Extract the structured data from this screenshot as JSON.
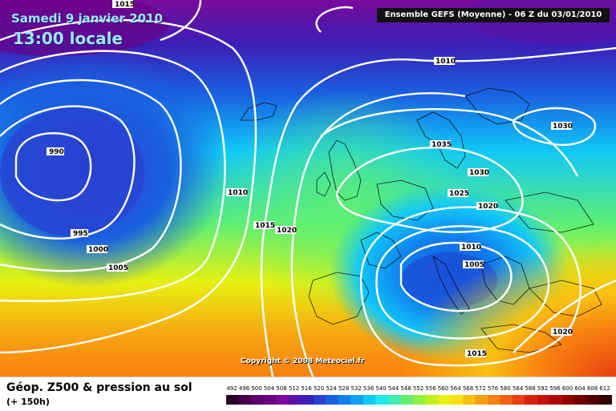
{
  "header": {
    "valid_date": "Samedi 9 janvier 2010",
    "local_time": "13:00 locale",
    "run_info": "Ensemble GEFS (Moyenne)  - 06 Z du 03/01/2010"
  },
  "copyright": "Copyright © 2008 Meteociel.fr",
  "footer": {
    "title": "Géop. Z500 & pression au sol",
    "subtitle": "(+ 150h)"
  },
  "legend": {
    "values": [
      "492",
      "496",
      "500",
      "504",
      "508",
      "512",
      "516",
      "520",
      "524",
      "528",
      "532",
      "536",
      "540",
      "544",
      "548",
      "552",
      "556",
      "560",
      "564",
      "568",
      "572",
      "576",
      "580",
      "584",
      "588",
      "592",
      "596",
      "600",
      "604",
      "608",
      "612"
    ],
    "colors": [
      "#2a002a",
      "#45004a",
      "#5a0066",
      "#6a0080",
      "#7a0a9a",
      "#5a10a8",
      "#3a20b8",
      "#2a40d0",
      "#1a60e0",
      "#1080f0",
      "#10a0f8",
      "#10c8f8",
      "#20e8e8",
      "#40f0b0",
      "#60f070",
      "#90f040",
      "#c0f020",
      "#e8f010",
      "#f8e010",
      "#f8c010",
      "#f8a010",
      "#f88010",
      "#f06010",
      "#e84010",
      "#d82010",
      "#c81010",
      "#b00808",
      "#900000",
      "#700000",
      "#500000",
      "#300000"
    ]
  },
  "isobar_labels": [
    "1015",
    "990",
    "995",
    "1000",
    "1005",
    "1010",
    "1015",
    "1020",
    "1010",
    "1035",
    "1030",
    "1025",
    "1020",
    "1030",
    "1010",
    "1005",
    "1015",
    "1020"
  ]
}
